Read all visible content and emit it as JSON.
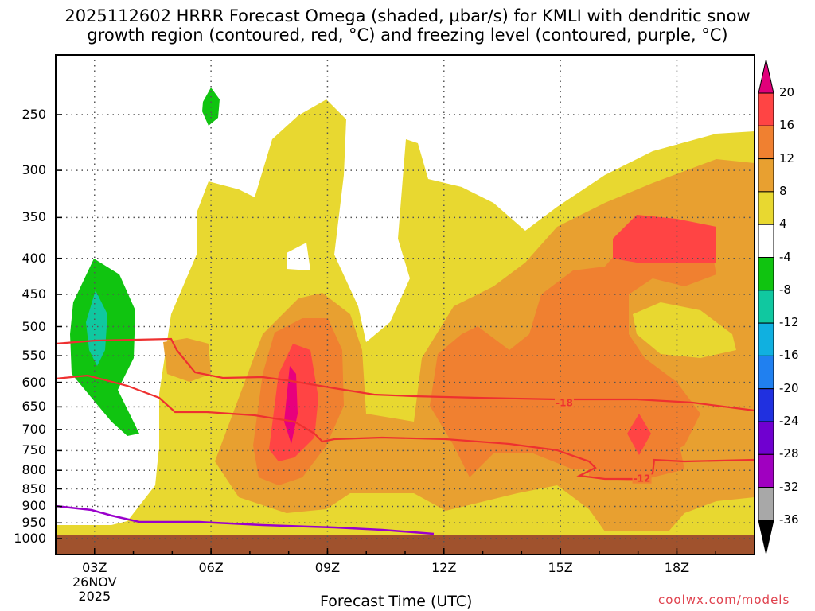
{
  "title_line1": "2025112602 HRRR Forecast Omega (shaded, μbar/s) for KMLI with dendritic snow",
  "title_line2": "growth region (contoured, red, °C) and freezing level (contoured, purple, °C)",
  "xlabel": "Forecast Time (UTC)",
  "credit": "coolwx.com/models",
  "chart_data": {
    "type": "time-height cross section (filled contour)",
    "variable": "Omega",
    "units": "μbar/s",
    "x_axis": {
      "label": "Forecast Time (UTC)",
      "ticks": [
        "03Z",
        "06Z",
        "09Z",
        "12Z",
        "15Z",
        "18Z"
      ],
      "tick_hours": [
        3,
        6,
        9,
        12,
        15,
        18
      ],
      "date_label": [
        "26NOV",
        "2025"
      ],
      "range_hours": [
        2,
        20
      ]
    },
    "y_axis": {
      "ticks": [
        "250",
        "300",
        "350",
        "400",
        "450",
        "500",
        "550",
        "600",
        "650",
        "700",
        "750",
        "800",
        "850",
        "900",
        "950",
        "1000"
      ],
      "tick_values_mb": [
        250,
        300,
        350,
        400,
        450,
        500,
        550,
        600,
        650,
        700,
        750,
        800,
        850,
        900,
        950,
        1000
      ],
      "range_mb": [
        200,
        1020
      ],
      "grid": true
    },
    "colorbar": {
      "labels": [
        "20",
        "16",
        "12",
        "8",
        "4",
        "-4",
        "-8",
        "-12",
        "-16",
        "-20",
        "-24",
        "-28",
        "-32",
        "-36"
      ],
      "colors": [
        "#ff4444",
        "#f08030",
        "#e8a030",
        "#e8d830",
        "#ffffff",
        "#10c410",
        "#10c8a0",
        "#10b0e0",
        "#2080f0",
        "#2030e0",
        "#7000d0",
        "#a000c0",
        "#a8a8a8"
      ],
      "arrow_top_color": "#e0007a",
      "arrow_bottom_color": "#000000"
    },
    "contour_labels": [
      {
        "text": "-18",
        "color": "#ee3030",
        "hour": 15.1,
        "mb": 640
      },
      {
        "text": "-12",
        "color": "#ee3030",
        "hour": 17.1,
        "mb": 820
      }
    ],
    "colors": {
      "dgz_contour": "#ee3030",
      "freezing_level": "#9a00cc",
      "ground": "#a0522d",
      "strong_core": "#e8007c"
    }
  }
}
